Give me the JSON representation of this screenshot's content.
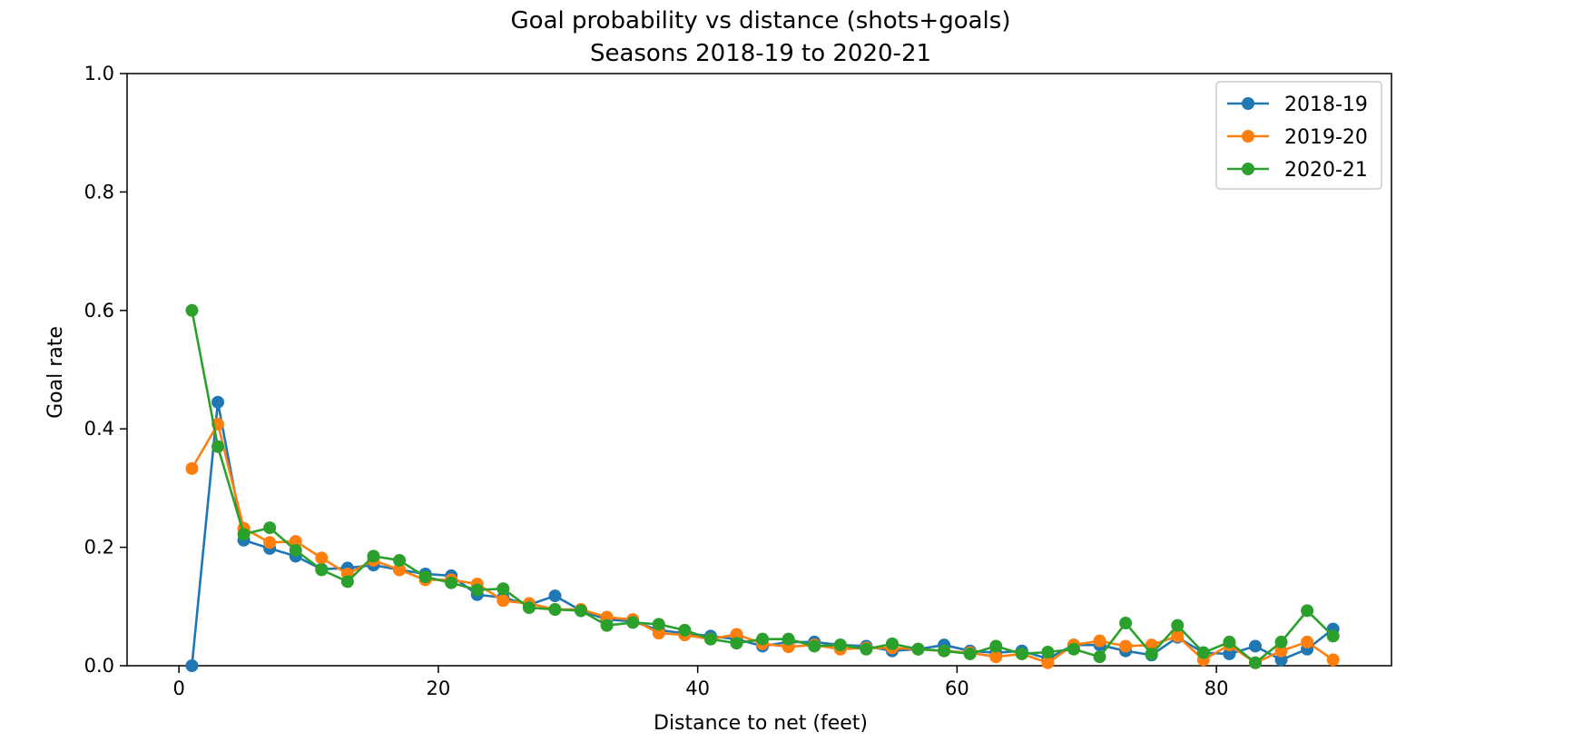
{
  "chart_data": {
    "type": "line",
    "title": "Goal probability vs distance (shots+goals)",
    "subtitle": "Seasons 2018-19 to 2020-21",
    "xlabel": "Distance to net (feet)",
    "ylabel": "Goal rate",
    "xlim": [
      -4,
      93.5
    ],
    "ylim": [
      0,
      1.0
    ],
    "xticks": [
      0,
      20,
      40,
      60,
      80
    ],
    "yticks": [
      0.0,
      0.2,
      0.4,
      0.6,
      0.8,
      1.0
    ],
    "grid": false,
    "legend_position": "top-right",
    "x": [
      1,
      3,
      5,
      7,
      9,
      11,
      13,
      15,
      17,
      19,
      21,
      23,
      25,
      27,
      29,
      31,
      33,
      35,
      37,
      39,
      41,
      43,
      45,
      47,
      49,
      51,
      53,
      55,
      57,
      59,
      61,
      63,
      65,
      67,
      69,
      71,
      73,
      75,
      77,
      79,
      81,
      83,
      85,
      87,
      89
    ],
    "series": [
      {
        "name": "2018-19",
        "color": "#1f77b4",
        "values": [
          0.0,
          0.445,
          0.212,
          0.198,
          0.185,
          0.163,
          0.165,
          0.17,
          0.162,
          0.155,
          0.152,
          0.12,
          0.115,
          0.103,
          0.118,
          0.093,
          0.078,
          0.075,
          0.06,
          0.055,
          0.05,
          0.045,
          0.033,
          0.04,
          0.04,
          0.035,
          0.033,
          0.025,
          0.028,
          0.035,
          0.025,
          0.022,
          0.025,
          0.012,
          0.035,
          0.035,
          0.025,
          0.018,
          0.048,
          0.022,
          0.02,
          0.033,
          0.01,
          0.028,
          0.062
        ]
      },
      {
        "name": "2019-20",
        "color": "#ff7f0e",
        "values": [
          0.333,
          0.408,
          0.232,
          0.208,
          0.21,
          0.182,
          0.155,
          0.178,
          0.162,
          0.145,
          0.145,
          0.138,
          0.11,
          0.105,
          0.095,
          0.095,
          0.082,
          0.078,
          0.055,
          0.052,
          0.045,
          0.053,
          0.037,
          0.032,
          0.035,
          0.028,
          0.03,
          0.03,
          0.028,
          0.025,
          0.022,
          0.015,
          0.02,
          0.005,
          0.035,
          0.042,
          0.033,
          0.035,
          0.05,
          0.01,
          0.035,
          0.005,
          0.025,
          0.04,
          0.01
        ]
      },
      {
        "name": "2020-21",
        "color": "#2ca02c",
        "values": [
          0.6,
          0.37,
          0.222,
          0.233,
          0.195,
          0.162,
          0.142,
          0.185,
          0.178,
          0.15,
          0.14,
          0.128,
          0.13,
          0.098,
          0.095,
          0.093,
          0.068,
          0.073,
          0.07,
          0.06,
          0.045,
          0.038,
          0.045,
          0.045,
          0.033,
          0.035,
          0.028,
          0.037,
          0.028,
          0.025,
          0.02,
          0.033,
          0.02,
          0.023,
          0.028,
          0.015,
          0.072,
          0.02,
          0.068,
          0.022,
          0.04,
          0.005,
          0.04,
          0.093,
          0.05
        ]
      }
    ]
  }
}
